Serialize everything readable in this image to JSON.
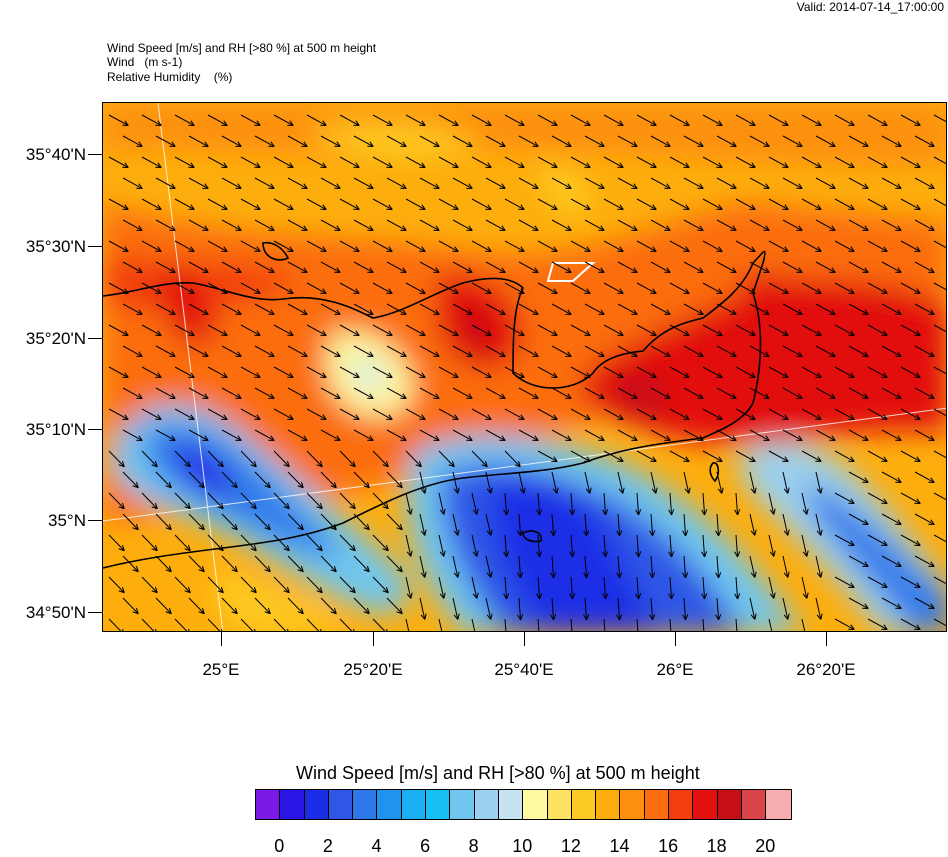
{
  "valid_time": "Valid: 2014-07-14_17:00:00",
  "header": {
    "line1": "Wind Speed [m/s] and RH [>80 %] at 500 m height",
    "line2": "Wind   (m s-1)",
    "line3": "Relative Humidity    (%)"
  },
  "map": {
    "lat_labels": [
      "35°40'N",
      "35°30'N",
      "35°20'N",
      "35°10'N",
      "35°N",
      "34°50'N"
    ],
    "lon_labels": [
      "25°E",
      "25°20'E",
      "25°40'E",
      "26°E",
      "26°20'E"
    ],
    "field": "Wind speed at 500 m height over Crete",
    "wind_direction": "mostly from NW toward SE; weaker/turning near south coast"
  },
  "colorbar": {
    "title": "Wind Speed [m/s] and RH [>80 %] at 500 m height",
    "colors": [
      "#7b1ae6",
      "#2a14e6",
      "#1a2ee6",
      "#2e57e6",
      "#2e78ea",
      "#1f94ef",
      "#1aaff2",
      "#18c0f4",
      "#70c6ee",
      "#9bd0ee",
      "#c6e3f2",
      "#fdfaa0",
      "#fde262",
      "#fdca24",
      "#fdae0d",
      "#fd8f0d",
      "#fb6d10",
      "#f23d0f",
      "#e2100f",
      "#c60f14",
      "#d9434a",
      "#f8aeb0"
    ],
    "labels": [
      "0",
      "2",
      "4",
      "6",
      "8",
      "10",
      "12",
      "14",
      "16",
      "18",
      "20"
    ]
  }
}
